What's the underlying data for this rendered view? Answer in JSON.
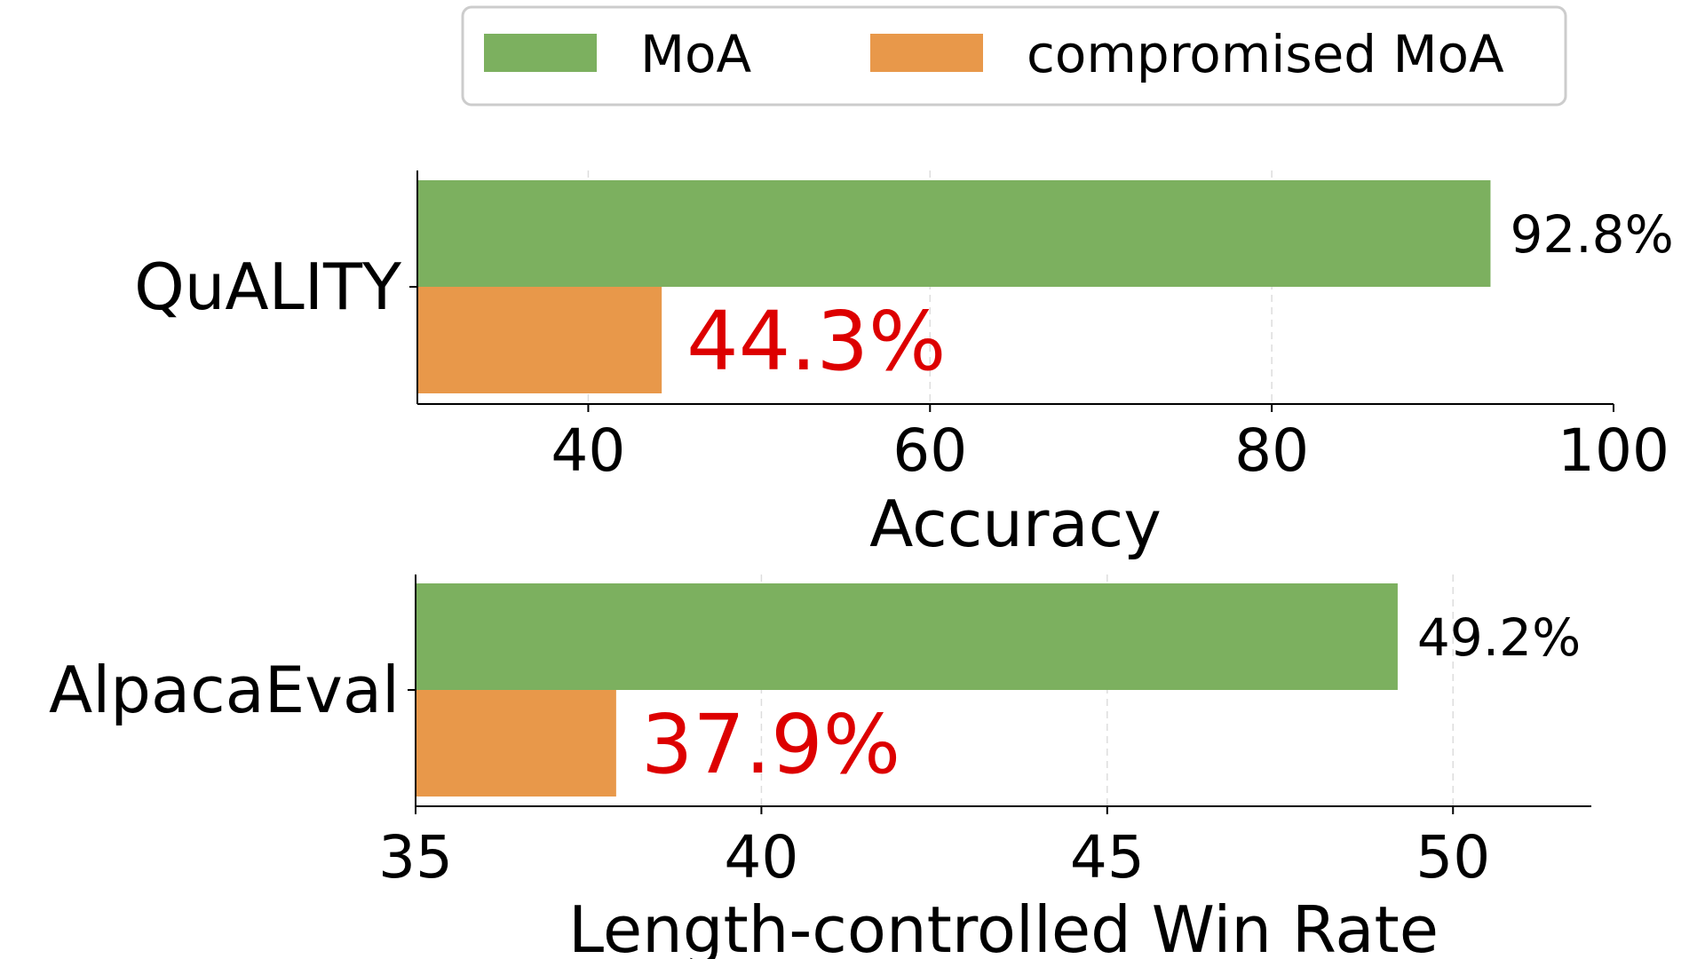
{
  "chart_data": [
    {
      "type": "bar",
      "orientation": "horizontal",
      "categories": [
        "QuALITY"
      ],
      "series": [
        {
          "name": "MoA",
          "values": [
            92.8
          ],
          "value_labels": [
            "92.8%"
          ],
          "color": "#7cb05f"
        },
        {
          "name": "compromised MoA",
          "values": [
            44.3
          ],
          "value_labels": [
            "44.3%"
          ],
          "color": "#e8984a",
          "label_color": "#dd0000",
          "label_emphasis": true
        }
      ],
      "xlabel": "Accuracy",
      "xlim": [
        30,
        100
      ],
      "xticks": [
        40,
        60,
        80,
        100
      ],
      "grid": "x-dashed"
    },
    {
      "type": "bar",
      "orientation": "horizontal",
      "categories": [
        "AlpacaEval"
      ],
      "series": [
        {
          "name": "MoA",
          "values": [
            49.2
          ],
          "value_labels": [
            "49.2%"
          ],
          "color": "#7cb05f"
        },
        {
          "name": "compromised MoA",
          "values": [
            37.9
          ],
          "value_labels": [
            "37.9%"
          ],
          "color": "#e8984a",
          "label_color": "#dd0000",
          "label_emphasis": true
        }
      ],
      "xlabel": "Length-controlled Win Rate",
      "xlim": [
        35,
        52
      ],
      "xticks": [
        35,
        40,
        45,
        50
      ],
      "grid": "x-dashed"
    }
  ],
  "legend": {
    "placement": "top-center",
    "items": [
      {
        "label": "MoA",
        "color": "#7cb05f"
      },
      {
        "label": "compromised MoA",
        "color": "#e8984a"
      }
    ]
  }
}
